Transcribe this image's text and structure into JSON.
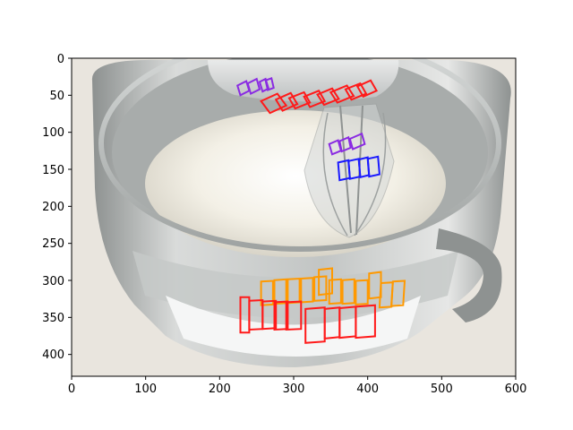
{
  "figure": {
    "x_ticks": [
      "0",
      "100",
      "200",
      "300",
      "400",
      "500",
      "600"
    ],
    "y_ticks": [
      "0",
      "50",
      "100",
      "150",
      "200",
      "250",
      "300",
      "350",
      "400"
    ]
  },
  "image": {
    "data_width": 600,
    "data_height": 430,
    "content": "mixer bowl with whipped cream and overlaid text-detection boxes"
  },
  "colors": {
    "purple": "#8a2be2",
    "red": "#ff1a1a",
    "blue": "#1a1aff",
    "orange": "#ff9900",
    "bowl_metal": "#b9bcbc",
    "cream": "#f4f2ea",
    "countertop": "#e7e3dc"
  },
  "boxes": [
    {
      "color": "purple",
      "quad": [
        [
          224,
          37
        ],
        [
          236,
          31
        ],
        [
          240,
          44
        ],
        [
          228,
          50
        ]
      ]
    },
    {
      "color": "purple",
      "quad": [
        [
          238,
          34
        ],
        [
          250,
          28
        ],
        [
          254,
          42
        ],
        [
          242,
          48
        ]
      ]
    },
    {
      "color": "purple",
      "quad": [
        [
          254,
          32
        ],
        [
          262,
          28
        ],
        [
          266,
          41
        ],
        [
          258,
          45
        ]
      ]
    },
    {
      "color": "purple",
      "quad": [
        [
          262,
          30
        ],
        [
          270,
          27
        ],
        [
          273,
          40
        ],
        [
          265,
          43
        ]
      ]
    },
    {
      "color": "purple",
      "quad": [
        [
          348,
          116
        ],
        [
          360,
          111
        ],
        [
          364,
          125
        ],
        [
          352,
          130
        ]
      ]
    },
    {
      "color": "purple",
      "quad": [
        [
          362,
          112
        ],
        [
          374,
          107
        ],
        [
          377,
          121
        ],
        [
          365,
          126
        ]
      ]
    },
    {
      "color": "purple",
      "quad": [
        [
          376,
          109
        ],
        [
          392,
          102
        ],
        [
          396,
          116
        ],
        [
          380,
          123
        ]
      ]
    },
    {
      "color": "red",
      "quad": [
        [
          256,
          58
        ],
        [
          278,
          48
        ],
        [
          290,
          64
        ],
        [
          268,
          74
        ]
      ]
    },
    {
      "color": "red",
      "quad": [
        [
          276,
          56
        ],
        [
          296,
          47
        ],
        [
          305,
          62
        ],
        [
          285,
          71
        ]
      ]
    },
    {
      "color": "red",
      "quad": [
        [
          294,
          54
        ],
        [
          314,
          46
        ],
        [
          322,
          60
        ],
        [
          302,
          68
        ]
      ]
    },
    {
      "color": "red",
      "quad": [
        [
          314,
          52
        ],
        [
          334,
          44
        ],
        [
          342,
          58
        ],
        [
          322,
          66
        ]
      ]
    },
    {
      "color": "red",
      "quad": [
        [
          332,
          49
        ],
        [
          352,
          41
        ],
        [
          361,
          55
        ],
        [
          341,
          63
        ]
      ]
    },
    {
      "color": "red",
      "quad": [
        [
          350,
          46
        ],
        [
          372,
          37
        ],
        [
          381,
          51
        ],
        [
          359,
          60
        ]
      ]
    },
    {
      "color": "red",
      "quad": [
        [
          370,
          42
        ],
        [
          390,
          34
        ],
        [
          398,
          48
        ],
        [
          378,
          56
        ]
      ]
    },
    {
      "color": "red",
      "quad": [
        [
          386,
          38
        ],
        [
          404,
          30
        ],
        [
          412,
          44
        ],
        [
          394,
          52
        ]
      ]
    },
    {
      "color": "blue",
      "quad": [
        [
          360,
          141
        ],
        [
          374,
          138
        ],
        [
          376,
          162
        ],
        [
          362,
          165
        ]
      ]
    },
    {
      "color": "blue",
      "quad": [
        [
          374,
          139
        ],
        [
          388,
          136
        ],
        [
          390,
          160
        ],
        [
          376,
          163
        ]
      ]
    },
    {
      "color": "blue",
      "quad": [
        [
          388,
          137
        ],
        [
          400,
          134
        ],
        [
          402,
          158
        ],
        [
          390,
          161
        ]
      ]
    },
    {
      "color": "blue",
      "quad": [
        [
          400,
          136
        ],
        [
          414,
          133
        ],
        [
          416,
          157
        ],
        [
          402,
          160
        ]
      ]
    },
    {
      "color": "orange",
      "quad": [
        [
          256,
          302
        ],
        [
          272,
          301
        ],
        [
          272,
          333
        ],
        [
          256,
          334
        ]
      ]
    },
    {
      "color": "orange",
      "quad": [
        [
          274,
          300
        ],
        [
          290,
          299
        ],
        [
          290,
          331
        ],
        [
          274,
          332
        ]
      ]
    },
    {
      "color": "orange",
      "quad": [
        [
          292,
          299
        ],
        [
          308,
          298
        ],
        [
          308,
          330
        ],
        [
          292,
          331
        ]
      ]
    },
    {
      "color": "orange",
      "quad": [
        [
          310,
          298
        ],
        [
          326,
          297
        ],
        [
          326,
          329
        ],
        [
          310,
          330
        ]
      ]
    },
    {
      "color": "orange",
      "quad": [
        [
          328,
          296
        ],
        [
          344,
          295
        ],
        [
          344,
          327
        ],
        [
          328,
          328
        ]
      ]
    },
    {
      "color": "orange",
      "quad": [
        [
          334,
          286
        ],
        [
          352,
          284
        ],
        [
          352,
          318
        ],
        [
          334,
          320
        ]
      ]
    },
    {
      "color": "orange",
      "quad": [
        [
          348,
          300
        ],
        [
          364,
          299
        ],
        [
          364,
          331
        ],
        [
          348,
          332
        ]
      ]
    },
    {
      "color": "orange",
      "quad": [
        [
          366,
          300
        ],
        [
          382,
          299
        ],
        [
          382,
          331
        ],
        [
          366,
          332
        ]
      ]
    },
    {
      "color": "orange",
      "quad": [
        [
          384,
          301
        ],
        [
          400,
          300
        ],
        [
          400,
          332
        ],
        [
          384,
          333
        ]
      ]
    },
    {
      "color": "orange",
      "quad": [
        [
          402,
          291
        ],
        [
          418,
          289
        ],
        [
          418,
          323
        ],
        [
          402,
          325
        ]
      ]
    },
    {
      "color": "orange",
      "quad": [
        [
          418,
          304
        ],
        [
          434,
          303
        ],
        [
          432,
          336
        ],
        [
          416,
          337
        ]
      ]
    },
    {
      "color": "orange",
      "quad": [
        [
          434,
          302
        ],
        [
          450,
          301
        ],
        [
          448,
          334
        ],
        [
          432,
          335
        ]
      ]
    },
    {
      "color": "red",
      "quad": [
        [
          228,
          323
        ],
        [
          240,
          323
        ],
        [
          240,
          371
        ],
        [
          228,
          371
        ]
      ]
    },
    {
      "color": "red",
      "quad": [
        [
          240,
          328
        ],
        [
          258,
          327
        ],
        [
          258,
          366
        ],
        [
          240,
          367
        ]
      ]
    },
    {
      "color": "red",
      "quad": [
        [
          258,
          329
        ],
        [
          276,
          328
        ],
        [
          276,
          365
        ],
        [
          258,
          366
        ]
      ]
    },
    {
      "color": "red",
      "quad": [
        [
          274,
          330
        ],
        [
          292,
          329
        ],
        [
          292,
          366
        ],
        [
          274,
          367
        ]
      ]
    },
    {
      "color": "red",
      "quad": [
        [
          290,
          330
        ],
        [
          310,
          329
        ],
        [
          310,
          366
        ],
        [
          290,
          367
        ]
      ]
    },
    {
      "color": "red",
      "quad": [
        [
          316,
          339
        ],
        [
          342,
          337
        ],
        [
          342,
          383
        ],
        [
          316,
          385
        ]
      ]
    },
    {
      "color": "red",
      "quad": [
        [
          342,
          339
        ],
        [
          362,
          337
        ],
        [
          362,
          377
        ],
        [
          342,
          379
        ]
      ]
    },
    {
      "color": "red",
      "quad": [
        [
          362,
          338
        ],
        [
          384,
          336
        ],
        [
          384,
          376
        ],
        [
          362,
          378
        ]
      ]
    },
    {
      "color": "red",
      "quad": [
        [
          384,
          336
        ],
        [
          410,
          334
        ],
        [
          410,
          376
        ],
        [
          384,
          378
        ]
      ]
    }
  ]
}
